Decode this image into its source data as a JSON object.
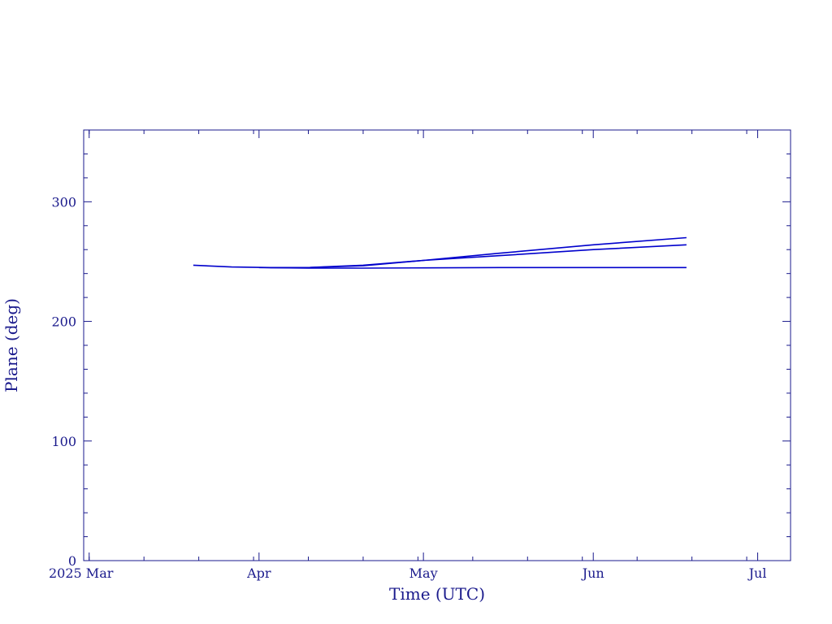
{
  "chart_data": {
    "type": "line",
    "xlabel": "Time (UTC)",
    "ylabel": "Plane (deg)",
    "xlim": [
      "2025-02-28",
      "2025-07-07"
    ],
    "ylim": [
      0,
      360
    ],
    "grid": false,
    "x_ticks": [
      {
        "date": "2025-03-01",
        "label": "2025 Mar"
      },
      {
        "date": "2025-04-01",
        "label": "Apr"
      },
      {
        "date": "2025-05-01",
        "label": "May"
      },
      {
        "date": "2025-06-01",
        "label": "Jun"
      },
      {
        "date": "2025-07-01",
        "label": "Jul"
      }
    ],
    "y_ticks": [
      0,
      100,
      200,
      300
    ],
    "line_color": "#0000cc",
    "axis_color": "#1a1a8c",
    "series": [
      {
        "x": [
          "2025-03-20",
          "2025-03-27",
          "2025-04-03",
          "2025-04-10",
          "2025-04-20",
          "2025-05-01",
          "2025-05-15",
          "2025-06-01",
          "2025-06-18"
        ],
        "values": [
          247,
          245.5,
          245,
          245,
          246.5,
          251,
          257,
          264,
          270
        ]
      },
      {
        "x": [
          "2025-04-03",
          "2025-04-10",
          "2025-04-20",
          "2025-05-01",
          "2025-05-15",
          "2025-06-01",
          "2025-06-18"
        ],
        "values": [
          245,
          245,
          247,
          251,
          255,
          260,
          264
        ]
      },
      {
        "x": [
          "2025-04-01",
          "2025-04-10",
          "2025-04-20",
          "2025-05-01",
          "2025-05-15",
          "2025-06-01",
          "2025-06-18"
        ],
        "values": [
          245,
          244.5,
          244.5,
          244.7,
          245,
          245,
          245
        ]
      }
    ]
  }
}
